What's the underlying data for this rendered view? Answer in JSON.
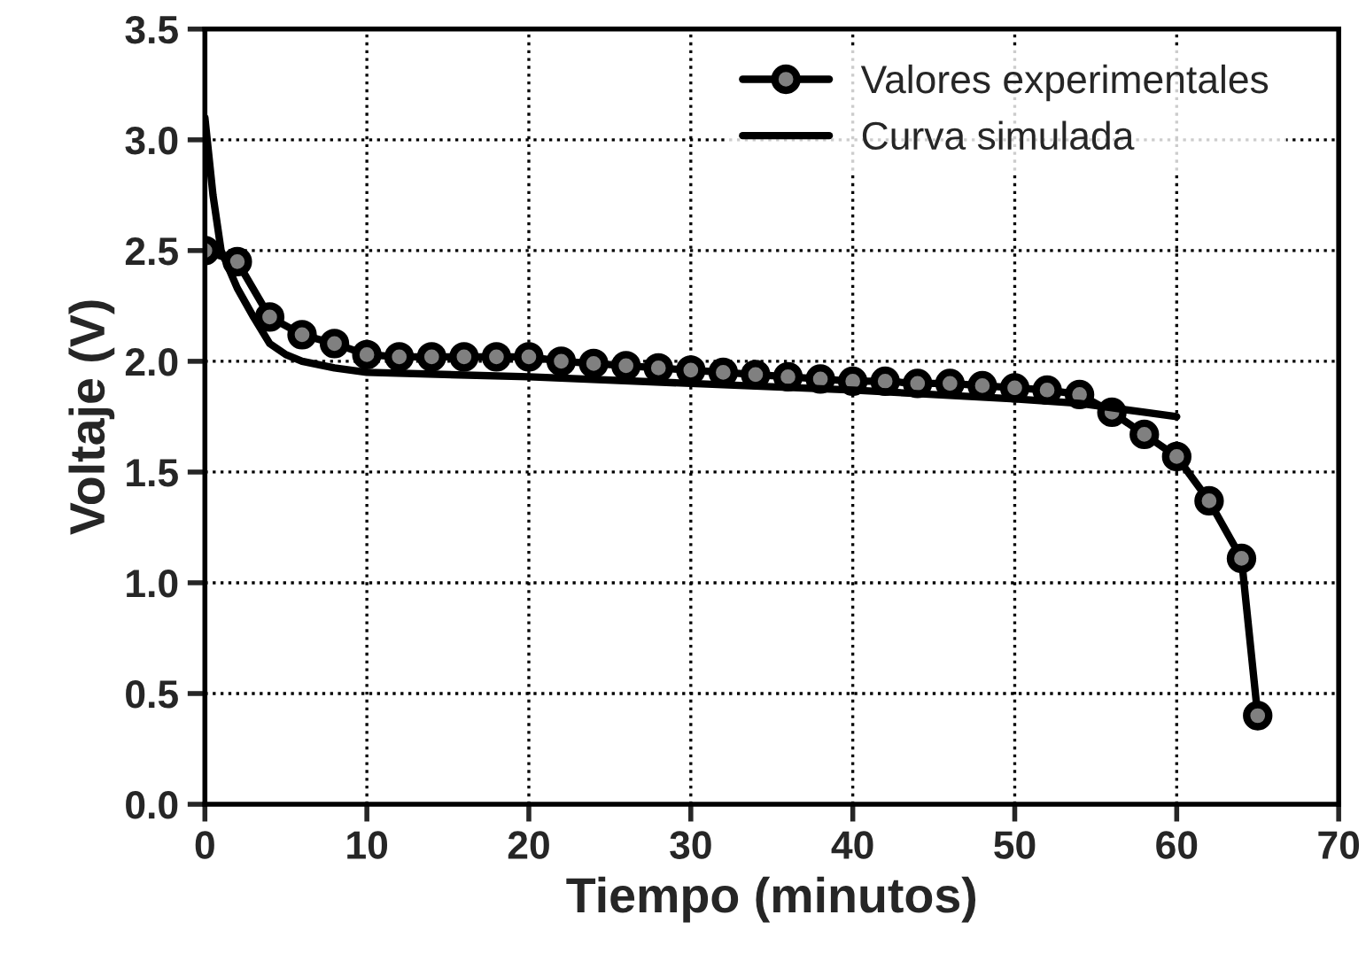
{
  "chart_data": {
    "type": "line",
    "xlabel": "Tiempo (minutos)",
    "ylabel": "Voltaje (V)",
    "xlim": [
      0,
      70
    ],
    "xticks": [
      0,
      10,
      20,
      30,
      40,
      50,
      60,
      70
    ],
    "ylim": [
      0,
      3.5
    ],
    "yticks": [
      {
        "value": 0,
        "label": "0.0"
      },
      0.5,
      {
        "value": 1,
        "label": "1.0"
      },
      1.5,
      {
        "value": 2,
        "label": "2.0"
      },
      2.5,
      {
        "value": 3,
        "label": "3.0"
      },
      3.5
    ],
    "grid": true,
    "legend": "top right",
    "series": [
      {
        "name": "Valores experimentales",
        "color": "#000000",
        "marker": "circle",
        "x": [
          0,
          2,
          4,
          6,
          8,
          10,
          12,
          14,
          16,
          18,
          20,
          22,
          24,
          26,
          28,
          30,
          32,
          34,
          36,
          38,
          40,
          42,
          44,
          46,
          48,
          50,
          52,
          54,
          56,
          58,
          60,
          62,
          64,
          65
        ],
        "values": [
          2.5,
          2.45,
          2.2,
          2.12,
          2.08,
          2.03,
          2.02,
          2.02,
          2.02,
          2.02,
          2.02,
          2.0,
          1.99,
          1.98,
          1.97,
          1.96,
          1.95,
          1.94,
          1.93,
          1.92,
          1.91,
          1.91,
          1.9,
          1.9,
          1.89,
          1.88,
          1.87,
          1.85,
          1.77,
          1.67,
          1.57,
          1.37,
          1.11,
          0.4
        ]
      },
      {
        "name": "Curva simulada",
        "color": "#000000",
        "marker": "none",
        "x": [
          0,
          0.5,
          1,
          2,
          3,
          4,
          5,
          6,
          8,
          10,
          20,
          30,
          40,
          50,
          54,
          56,
          58,
          60
        ],
        "values": [
          3.1,
          2.75,
          2.5,
          2.33,
          2.2,
          2.08,
          2.03,
          2.0,
          1.97,
          1.95,
          1.93,
          1.9,
          1.87,
          1.83,
          1.81,
          1.79,
          1.77,
          1.75
        ]
      }
    ]
  }
}
